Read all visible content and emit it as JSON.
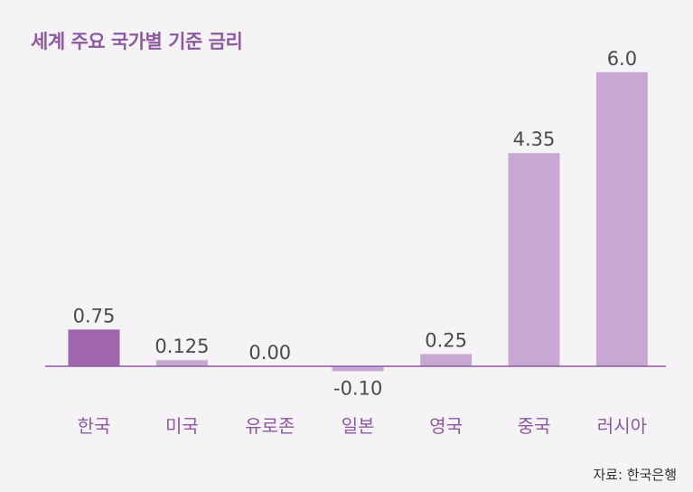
{
  "chart_data": {
    "type": "bar",
    "title": "세계 주요 국가별 기준 금리",
    "categories": [
      "한국",
      "미국",
      "유로존",
      "일본",
      "영국",
      "중국",
      "러시아"
    ],
    "values": [
      0.75,
      0.125,
      0.0,
      -0.1,
      0.25,
      4.35,
      6.0
    ],
    "value_labels": [
      "0.75",
      "0.125",
      "0.00",
      "-0.10",
      "0.25",
      "4.35",
      "6.0"
    ],
    "highlight_index": 0,
    "colors": {
      "highlight": "#a066ad",
      "bar": "#c6a8d3",
      "axis": "#8d5aa0",
      "title": "#8d5aa0"
    },
    "grid": false,
    "source": "자료: 한국은행"
  }
}
